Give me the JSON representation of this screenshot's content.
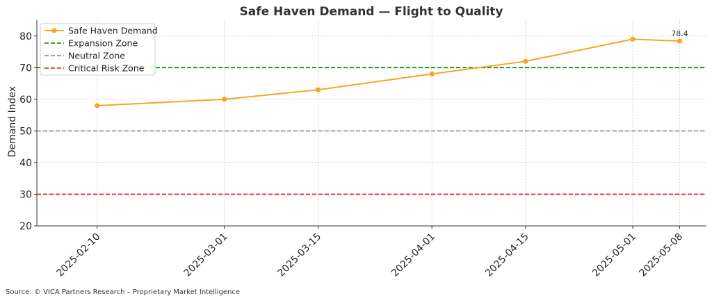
{
  "chart_data": {
    "type": "line",
    "title": "Safe Haven Demand — Flight to Quality",
    "xlabel": "",
    "ylabel": "Demand Index",
    "x": [
      "2025-02-10",
      "2025-03-01",
      "2025-03-15",
      "2025-04-01",
      "2025-04-15",
      "2025-05-01",
      "2025-05-08"
    ],
    "series": [
      {
        "name": "Safe Haven Demand",
        "values": [
          58,
          60,
          63,
          68,
          72,
          79,
          78.4
        ],
        "color": "#f5a623"
      }
    ],
    "reference_lines": [
      {
        "name": "Expansion Zone",
        "value": 70,
        "color": "#008000",
        "style": "dashed"
      },
      {
        "name": "Neutral Zone",
        "value": 50,
        "color": "#808080",
        "style": "dashed"
      },
      {
        "name": "Critical Risk Zone",
        "value": 30,
        "color": "#e31a1c",
        "style": "dashed"
      }
    ],
    "ylim": [
      20,
      85
    ],
    "yticks": [
      20,
      30,
      40,
      50,
      60,
      70,
      80
    ],
    "annotations": [
      {
        "x": "2025-05-08",
        "y": 78.4,
        "text": "78.4"
      }
    ],
    "grid": true,
    "legend_position": "top-left"
  },
  "source_text": "Source: © VICA Partners Research – Proprietary Market Intelligence"
}
